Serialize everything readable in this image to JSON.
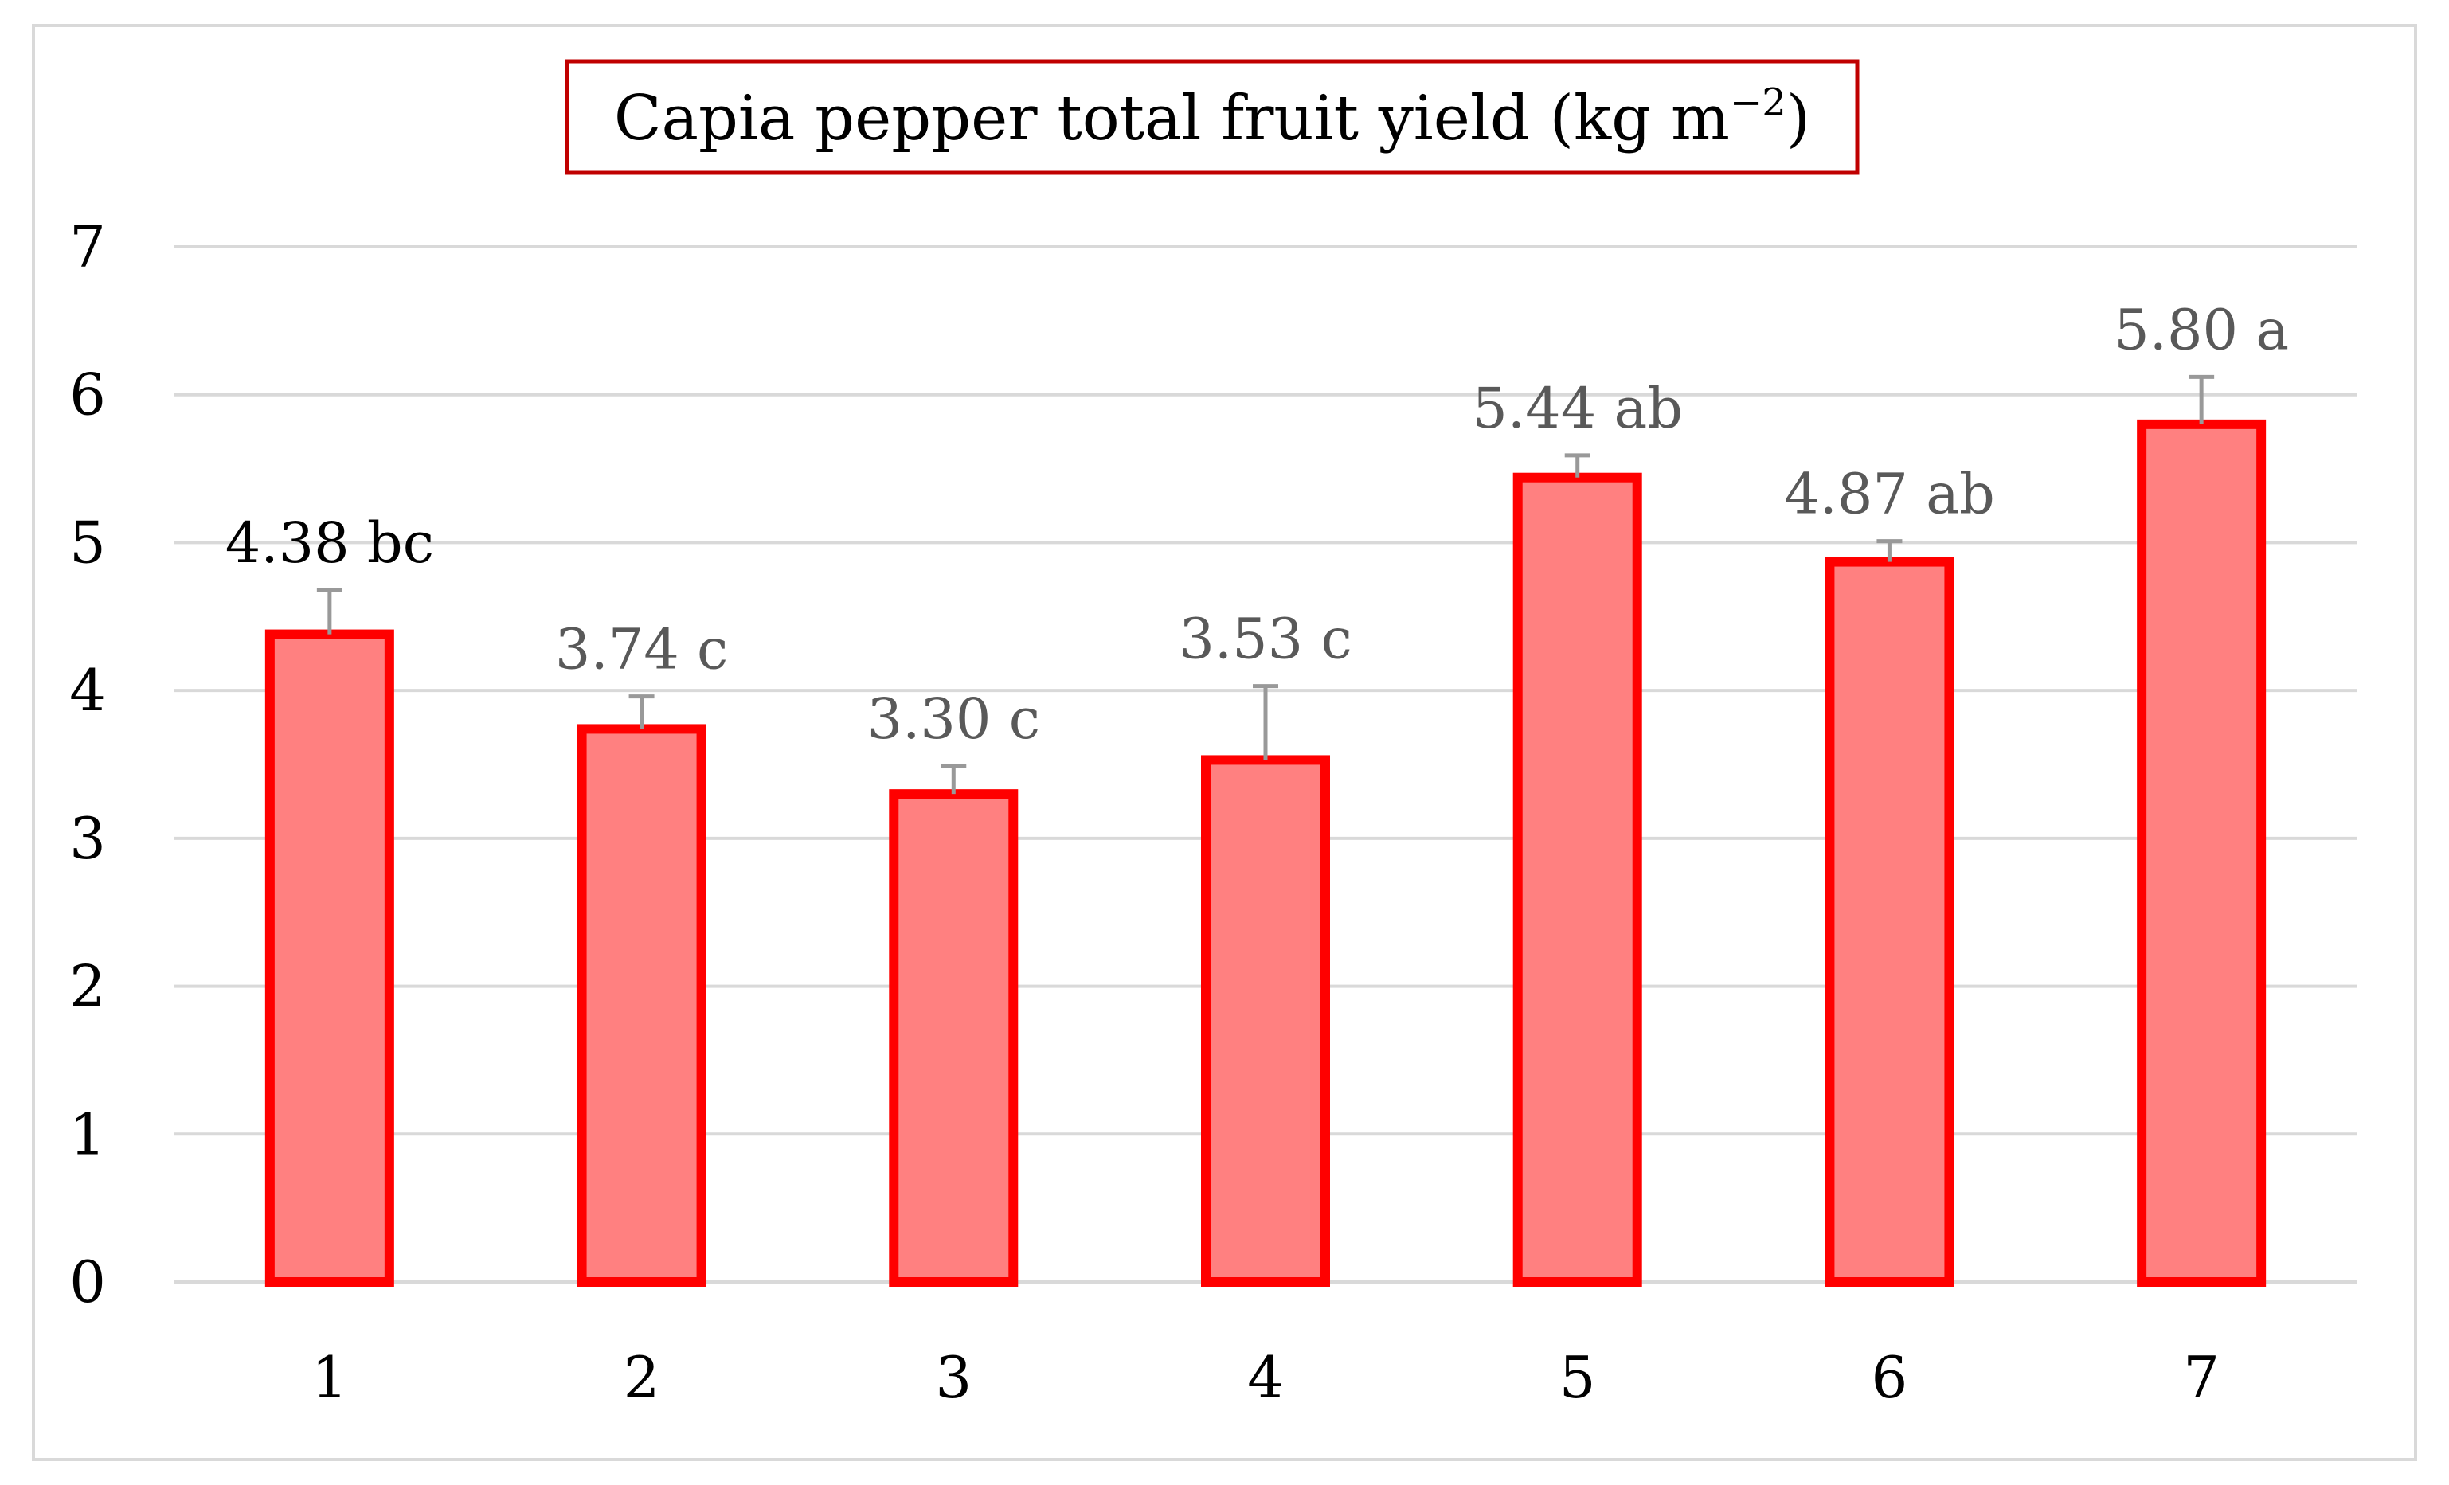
{
  "chart_data": {
    "type": "bar",
    "title": "Capia pepper total fruit yield (kg m",
    "title_superscript": "−2",
    "title_suffix": ")",
    "categories": [
      "1",
      "2",
      "3",
      "4",
      "5",
      "6",
      "7"
    ],
    "values": [
      4.38,
      3.74,
      3.3,
      3.53,
      5.44,
      4.87,
      5.8
    ],
    "error_bars": [
      0.3,
      0.22,
      0.19,
      0.5,
      0.15,
      0.14,
      0.32
    ],
    "data_labels": [
      "4.38 bc",
      "3.74 c",
      "3.30 c",
      "3.53 c",
      "5.44 ab",
      "4.87 ab",
      "5.80 a"
    ],
    "ylim": [
      0,
      7
    ],
    "yticks": [
      "0",
      "1",
      "2",
      "3",
      "4",
      "5",
      "6",
      "7"
    ],
    "xlabel": "",
    "ylabel": "",
    "grid": true,
    "legend": "none",
    "colors": {
      "bar_fill": "#ff8080",
      "bar_border": "#ff0000",
      "error_bar": "#999999",
      "gridline": "#d9d9d9",
      "title_border": "#c00000",
      "first_label": "#000000",
      "other_labels": "#595959"
    }
  }
}
